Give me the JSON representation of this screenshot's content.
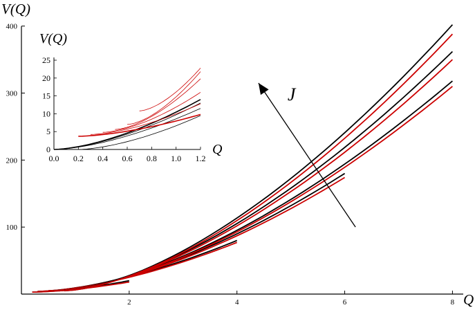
{
  "chart_data": [
    {
      "type": "line",
      "xlabel": "Q",
      "ylabel": "V(Q)",
      "xlim": [
        0,
        8.2
      ],
      "ylim": [
        0,
        410
      ],
      "xticks": [
        2,
        4,
        6,
        8
      ],
      "yticks": [
        100,
        200,
        300,
        400
      ],
      "annotation": {
        "text": "J",
        "arrow_from": [
          6.2,
          100
        ],
        "arrow_to": [
          4.4,
          315
        ]
      },
      "series": [
        {
          "color": "#000000",
          "x": [
            0.2,
            2.0
          ],
          "y": [
            3,
            20
          ]
        },
        {
          "color": "#cc0000",
          "x": [
            0.2,
            2.0
          ],
          "y": [
            3,
            18
          ]
        },
        {
          "color": "#000000",
          "x": [
            0.3,
            4.0
          ],
          "y": [
            4,
            80
          ]
        },
        {
          "color": "#cc0000",
          "x": [
            0.3,
            4.0
          ],
          "y": [
            4,
            77
          ]
        },
        {
          "color": "#000000",
          "x": [
            0.5,
            6.0
          ],
          "y": [
            5,
            180
          ]
        },
        {
          "color": "#cc0000",
          "x": [
            0.5,
            6.0
          ],
          "y": [
            5,
            174
          ]
        },
        {
          "color": "#000000",
          "x": [
            0.6,
            8.0
          ],
          "y": [
            5,
            318
          ]
        },
        {
          "color": "#cc0000",
          "x": [
            0.6,
            8.0
          ],
          "y": [
            5,
            310
          ]
        },
        {
          "color": "#000000",
          "x": [
            0.7,
            8.0
          ],
          "y": [
            5,
            362
          ]
        },
        {
          "color": "#cc0000",
          "x": [
            0.7,
            8.0
          ],
          "y": [
            5,
            350
          ]
        },
        {
          "color": "#000000",
          "x": [
            0.8,
            8.0
          ],
          "y": [
            5,
            402
          ]
        },
        {
          "color": "#cc0000",
          "x": [
            0.8,
            8.0
          ],
          "y": [
            5,
            388
          ]
        }
      ]
    },
    {
      "type": "line",
      "xlabel": "Q",
      "ylabel": "V(Q)",
      "xlim": [
        0,
        1.2
      ],
      "ylim": [
        0,
        25
      ],
      "xticks": [
        "0.0",
        "0.2",
        "0.4",
        "0.6",
        "0.8",
        "1.0",
        "1.2"
      ],
      "yticks": [
        "0",
        "5",
        "10",
        "15",
        "20",
        "25"
      ],
      "series": [
        {
          "color": "#000000",
          "x": [
            0.0,
            1.2
          ],
          "y": [
            0,
            14.0
          ]
        },
        {
          "color": "#000000",
          "x": [
            0.0,
            1.2
          ],
          "y": [
            0,
            13.0
          ]
        },
        {
          "color": "#000000",
          "x": [
            0.0,
            1.2
          ],
          "y": [
            0,
            11.5
          ]
        },
        {
          "color": "#000000",
          "x": [
            0.2,
            1.2
          ],
          "y": [
            0,
            9.5
          ]
        },
        {
          "color": "#cc0000",
          "x": [
            0.2,
            1.2
          ],
          "y": [
            3.7,
            9.8
          ]
        },
        {
          "color": "#cc0000",
          "x": [
            0.3,
            1.2
          ],
          "y": [
            4.2,
            12.8
          ]
        },
        {
          "color": "#cc0000",
          "x": [
            0.4,
            1.2
          ],
          "y": [
            4.8,
            16.0
          ]
        },
        {
          "color": "#cc0000",
          "x": [
            0.5,
            1.2
          ],
          "y": [
            5.6,
            19.8
          ]
        },
        {
          "color": "#cc0000",
          "x": [
            0.6,
            1.2
          ],
          "y": [
            7.0,
            21.8
          ]
        },
        {
          "color": "#cc0000",
          "x": [
            0.7,
            1.2
          ],
          "y": [
            10.8,
            22.8
          ]
        }
      ]
    }
  ]
}
